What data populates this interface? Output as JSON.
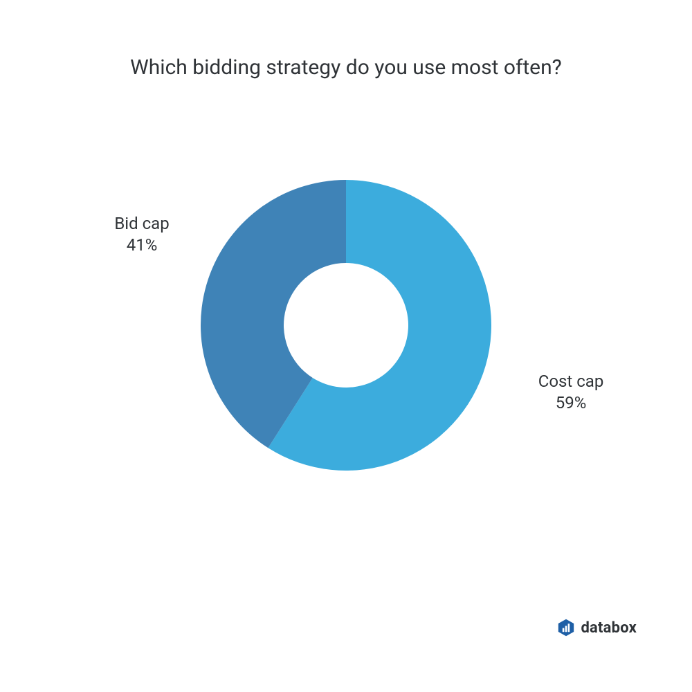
{
  "chart": {
    "type": "donut",
    "title": "Which bidding strategy do you use most often?",
    "title_fontsize": 30,
    "title_color": "#2f3337",
    "background_color": "#ffffff",
    "outer_radius": 210,
    "inner_radius": 90,
    "start_angle_deg": 0,
    "slices": [
      {
        "label": "Cost cap",
        "value": 59,
        "color": "#3cacdd"
      },
      {
        "label": "Bid cap",
        "value": 41,
        "color": "#3f83b7"
      }
    ],
    "label_fontsize": 24,
    "label_color": "#2f3337"
  },
  "labels": {
    "left_line1": "Bid cap",
    "left_line2": "41%",
    "right_line1": "Cost cap",
    "right_line2": "59%"
  },
  "brand": {
    "name": "databox",
    "icon_fill": "#1e5fa6",
    "icon_bars": "#ffffff",
    "text_color": "#2f3337"
  }
}
